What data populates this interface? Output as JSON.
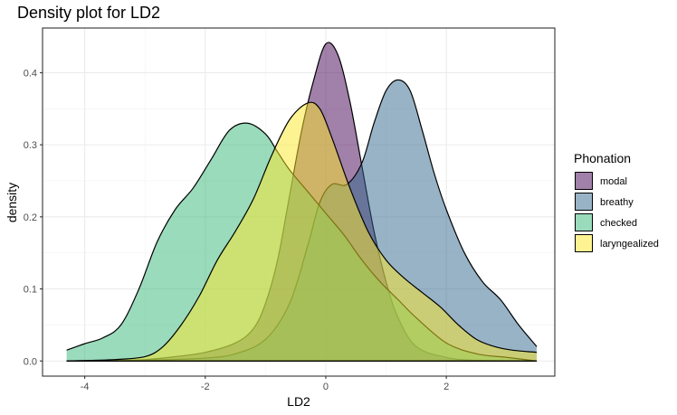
{
  "chart_data": {
    "type": "area",
    "title": "Density plot for LD2",
    "xlabel": "LD2",
    "ylabel": "density",
    "xlim": [
      -4.7,
      3.8
    ],
    "ylim": [
      -0.021,
      0.462
    ],
    "x_ticks": [
      -4,
      -2,
      0,
      2
    ],
    "x_tick_labels": [
      "-4",
      "-2",
      "0",
      "2"
    ],
    "y_ticks": [
      0.0,
      0.1,
      0.2,
      0.3,
      0.4
    ],
    "y_tick_labels": [
      "0.0",
      "0.1",
      "0.2",
      "0.3",
      "0.4"
    ],
    "grid": true,
    "legend": {
      "title": "Phonation",
      "position": "right"
    },
    "series": [
      {
        "name": "modal",
        "color": "#440154",
        "points": [
          [
            -4.3,
            0
          ],
          [
            -3.5,
            0.001
          ],
          [
            -3.0,
            0.002
          ],
          [
            -2.5,
            0.006
          ],
          [
            -2.0,
            0.012
          ],
          [
            -1.5,
            0.025
          ],
          [
            -1.2,
            0.045
          ],
          [
            -1.0,
            0.08
          ],
          [
            -0.8,
            0.14
          ],
          [
            -0.6,
            0.23
          ],
          [
            -0.4,
            0.32
          ],
          [
            -0.2,
            0.39
          ],
          [
            0.0,
            0.44
          ],
          [
            0.2,
            0.425
          ],
          [
            0.4,
            0.36
          ],
          [
            0.6,
            0.27
          ],
          [
            0.8,
            0.18
          ],
          [
            1.0,
            0.11
          ],
          [
            1.2,
            0.06
          ],
          [
            1.5,
            0.02
          ],
          [
            2.0,
            0.005
          ],
          [
            2.5,
            0.001
          ],
          [
            3.5,
            0
          ]
        ]
      },
      {
        "name": "breathy",
        "color": "#31688E",
        "points": [
          [
            -4.3,
            0
          ],
          [
            -3.0,
            0.001
          ],
          [
            -2.0,
            0.004
          ],
          [
            -1.5,
            0.01
          ],
          [
            -1.0,
            0.03
          ],
          [
            -0.6,
            0.08
          ],
          [
            -0.3,
            0.16
          ],
          [
            -0.1,
            0.22
          ],
          [
            0.1,
            0.245
          ],
          [
            0.35,
            0.245
          ],
          [
            0.6,
            0.275
          ],
          [
            0.8,
            0.33
          ],
          [
            1.0,
            0.375
          ],
          [
            1.2,
            0.39
          ],
          [
            1.4,
            0.375
          ],
          [
            1.6,
            0.32
          ],
          [
            1.8,
            0.26
          ],
          [
            2.0,
            0.21
          ],
          [
            2.3,
            0.15
          ],
          [
            2.6,
            0.11
          ],
          [
            2.9,
            0.085
          ],
          [
            3.2,
            0.05
          ],
          [
            3.5,
            0.02
          ]
        ]
      },
      {
        "name": "checked",
        "color": "#35B779",
        "points": [
          [
            -4.3,
            0.015
          ],
          [
            -4.0,
            0.024
          ],
          [
            -3.7,
            0.032
          ],
          [
            -3.4,
            0.05
          ],
          [
            -3.1,
            0.1
          ],
          [
            -2.8,
            0.165
          ],
          [
            -2.5,
            0.21
          ],
          [
            -2.2,
            0.24
          ],
          [
            -1.9,
            0.28
          ],
          [
            -1.6,
            0.32
          ],
          [
            -1.3,
            0.33
          ],
          [
            -1.0,
            0.315
          ],
          [
            -0.8,
            0.29
          ],
          [
            -0.6,
            0.265
          ],
          [
            -0.3,
            0.235
          ],
          [
            0.0,
            0.205
          ],
          [
            0.3,
            0.175
          ],
          [
            0.6,
            0.14
          ],
          [
            0.9,
            0.11
          ],
          [
            1.2,
            0.085
          ],
          [
            1.5,
            0.06
          ],
          [
            2.0,
            0.025
          ],
          [
            2.5,
            0.01
          ],
          [
            3.0,
            0.005
          ],
          [
            3.5,
            0
          ]
        ]
      },
      {
        "name": "laryngealized",
        "color": "#FDE725",
        "points": [
          [
            -4.3,
            0
          ],
          [
            -3.5,
            0.002
          ],
          [
            -3.0,
            0.006
          ],
          [
            -2.7,
            0.02
          ],
          [
            -2.4,
            0.05
          ],
          [
            -2.1,
            0.09
          ],
          [
            -1.8,
            0.14
          ],
          [
            -1.5,
            0.18
          ],
          [
            -1.2,
            0.225
          ],
          [
            -0.9,
            0.285
          ],
          [
            -0.6,
            0.335
          ],
          [
            -0.3,
            0.358
          ],
          [
            -0.1,
            0.35
          ],
          [
            0.1,
            0.31
          ],
          [
            0.4,
            0.24
          ],
          [
            0.7,
            0.18
          ],
          [
            1.0,
            0.14
          ],
          [
            1.3,
            0.115
          ],
          [
            1.6,
            0.095
          ],
          [
            1.9,
            0.075
          ],
          [
            2.2,
            0.05
          ],
          [
            2.5,
            0.03
          ],
          [
            2.8,
            0.02
          ],
          [
            3.1,
            0.015
          ],
          [
            3.5,
            0.012
          ]
        ]
      }
    ]
  }
}
